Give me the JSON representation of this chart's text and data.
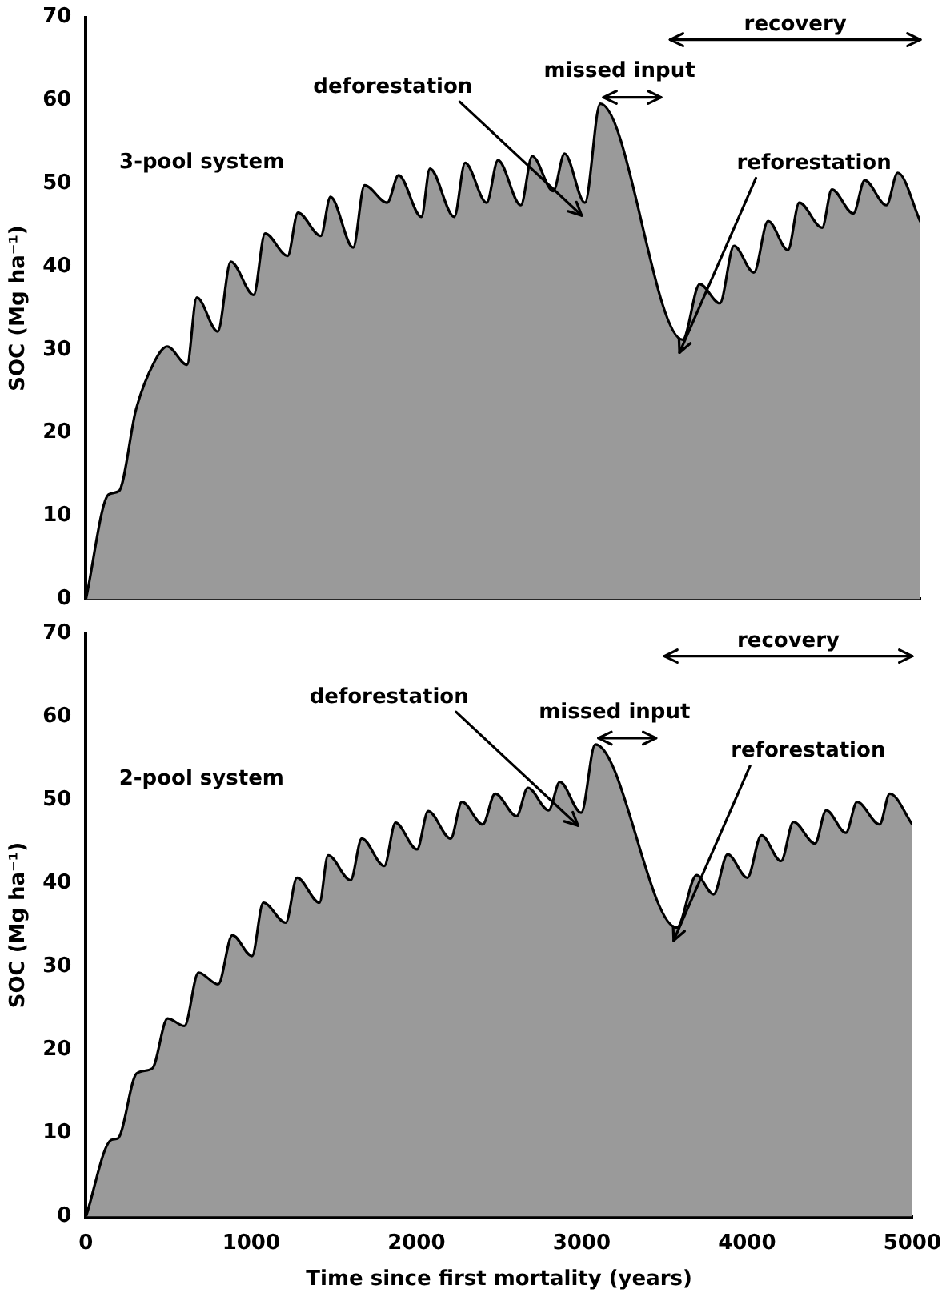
{
  "chart_data": [
    {
      "type": "area",
      "ylabel": "SOC (Mg ha⁻¹)",
      "xlim": [
        0,
        5000
      ],
      "xticks": [
        0,
        1000,
        2000,
        3000,
        4000,
        5000
      ],
      "ylim": [
        0,
        70
      ],
      "yticks": [
        0,
        10,
        20,
        30,
        40,
        50,
        60,
        70
      ],
      "tick_labels": "y",
      "grid": false,
      "legend": false,
      "marker": "none",
      "x": [
        0,
        136,
        198,
        300,
        409,
        487,
        606,
        664,
        790,
        868,
        1005,
        1073,
        1209,
        1270,
        1407,
        1465,
        1601,
        1669,
        1805,
        1873,
        2010,
        2061,
        2207,
        2272,
        2401,
        2469,
        2606,
        2674,
        2800,
        2868,
        2990,
        3082,
        3576,
        3678,
        3798,
        3883,
        4002,
        4087,
        4206,
        4274,
        4411,
        4469,
        4598,
        4666,
        4796,
        4864,
        5000
      ],
      "series": [
        {
          "color": "#9a9a9a",
          "values": [
            0,
            12.6,
            13,
            22.8,
            28.5,
            30.4,
            28.2,
            36.3,
            32.2,
            40.6,
            36.6,
            44,
            41.3,
            46.5,
            43.7,
            48.4,
            42.3,
            49.8,
            47.7,
            51,
            46,
            51.8,
            46,
            52.5,
            47.7,
            52.8,
            47.4,
            53.3,
            49.1,
            53.6,
            47.7,
            59.6,
            31.2,
            37.9,
            35.6,
            42.5,
            39.3,
            45.5,
            42,
            47.7,
            44.7,
            49.3,
            46.4,
            50.4,
            47.4,
            51.3,
            45.4
          ]
        }
      ],
      "annotations": [
        "3-pool system",
        {
          "text": "deforestation",
          "x": 2990,
          "y": 47.7
        },
        {
          "text": "missed input",
          "x": 3082,
          "y": 59.6
        },
        {
          "text": "reforestation",
          "x": 3576,
          "y": 31.2
        },
        "recovery"
      ]
    },
    {
      "type": "area",
      "xlabel": "Time since first mortality (years)",
      "ylabel": "SOC (Mg ha⁻¹)",
      "xlim": [
        0,
        5000
      ],
      "xticks": [
        0,
        1000,
        2000,
        3000,
        4000,
        5000
      ],
      "ylim": [
        0,
        70
      ],
      "yticks": [
        0,
        10,
        20,
        30,
        40,
        50,
        60,
        70
      ],
      "grid": false,
      "legend": false,
      "marker": "none",
      "x": [
        0,
        153,
        194,
        307,
        402,
        494,
        596,
        681,
        800,
        886,
        1005,
        1073,
        1209,
        1277,
        1413,
        1465,
        1601,
        1669,
        1805,
        1873,
        2003,
        2071,
        2207,
        2275,
        2401,
        2476,
        2606,
        2674,
        2800,
        2868,
        2997,
        3082,
        3576,
        3695,
        3798,
        3883,
        4002,
        4087,
        4206,
        4281,
        4411,
        4479,
        4598,
        4666,
        4802,
        4864,
        5000
      ],
      "series": [
        {
          "color": "#9a9a9a",
          "values": [
            0,
            9.2,
            9.4,
            17.2,
            17.8,
            23.8,
            22.9,
            29.3,
            27.9,
            33.8,
            31.3,
            37.7,
            35.3,
            40.7,
            37.7,
            43.4,
            40.4,
            45.4,
            42.1,
            47.3,
            44.1,
            48.7,
            45.4,
            49.8,
            47.1,
            50.8,
            48.1,
            51.5,
            48.8,
            52.2,
            48.5,
            56.7,
            34.7,
            41,
            38.7,
            43.5,
            40.7,
            45.8,
            42.7,
            47.4,
            44.8,
            48.8,
            46.1,
            49.8,
            47.1,
            50.8,
            47.1
          ]
        }
      ],
      "annotations": [
        "2-pool system",
        {
          "text": "deforestation",
          "x": 2997,
          "y": 48.5
        },
        {
          "text": "missed input",
          "x": 3082,
          "y": 56.7
        },
        {
          "text": "reforestation",
          "x": 3576,
          "y": 34.7
        },
        "recovery"
      ]
    }
  ]
}
